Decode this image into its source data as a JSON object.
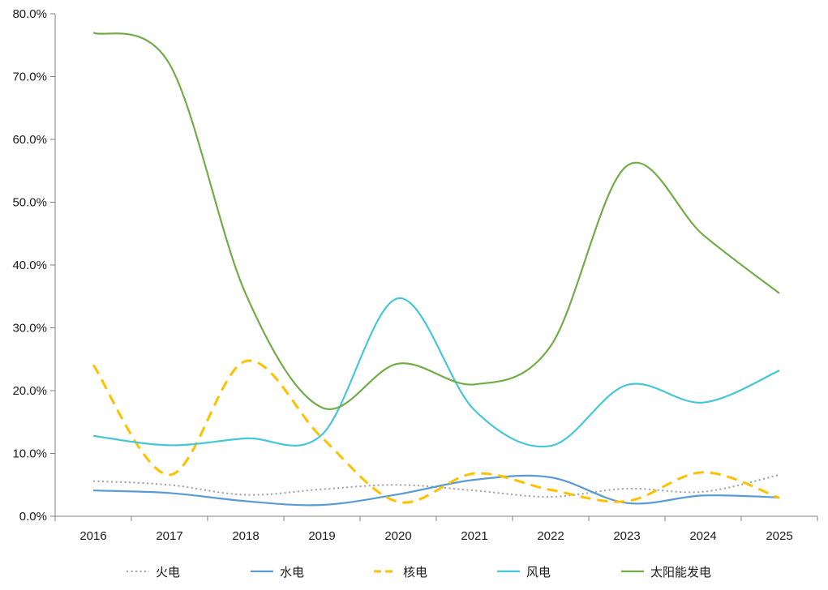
{
  "chart_data": {
    "type": "line",
    "title": "",
    "xlabel": "",
    "ylabel": "",
    "grid": false,
    "background": "#ffffff",
    "axis_color": "#808080",
    "text_color": "#1a1a1a",
    "legend_position": "bottom",
    "ylim": [
      0,
      80
    ],
    "ytick_step": 10,
    "ytick_labels": [
      "0.0%",
      "10.0%",
      "20.0%",
      "30.0%",
      "40.0%",
      "50.0%",
      "60.0%",
      "70.0%",
      "80.0%"
    ],
    "categories": [
      "2016",
      "2017",
      "2018",
      "2019",
      "2020",
      "2021",
      "2022",
      "2023",
      "2024",
      "2025"
    ],
    "unit": "percent",
    "line_smoothing": true,
    "series": [
      {
        "id": "thermal-power",
        "name": "火电",
        "color": "#A5A5A5",
        "style": "dotted",
        "values": [
          5.6,
          5.0,
          3.4,
          4.3,
          5.0,
          4.1,
          3.1,
          4.4,
          3.9,
          6.6
        ]
      },
      {
        "id": "hydro-power",
        "name": "水电",
        "color": "#5B9BD5",
        "style": "solid",
        "values": [
          4.1,
          3.7,
          2.4,
          1.8,
          3.5,
          5.8,
          6.2,
          2.1,
          3.3,
          3.0
        ]
      },
      {
        "id": "nuclear-power",
        "name": "核电",
        "color": "#FFC000",
        "style": "dashed",
        "values": [
          24.1,
          6.6,
          24.7,
          12.5,
          2.3,
          6.8,
          4.2,
          2.4,
          7.0,
          2.9
        ]
      },
      {
        "id": "wind-power",
        "name": "风电",
        "color": "#45C7D8",
        "style": "solid",
        "values": [
          12.8,
          11.3,
          12.4,
          13.0,
          34.7,
          16.9,
          11.2,
          20.9,
          18.1,
          23.2
        ]
      },
      {
        "id": "solar-power",
        "name": "太阳能发电",
        "color": "#70AD47",
        "style": "solid",
        "values": [
          77.0,
          72.0,
          35.4,
          17.3,
          24.3,
          21.0,
          27.1,
          55.8,
          44.8,
          35.5
        ]
      }
    ]
  }
}
